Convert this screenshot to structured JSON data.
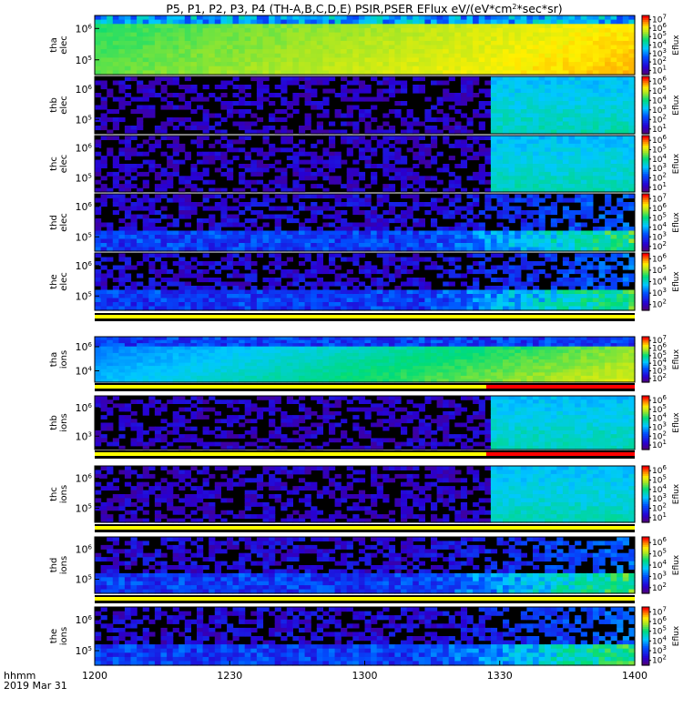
{
  "title": "P5, P1, P2, P3, P4 (TH-A,B,C,D,E) PSIR,PSER EFlux eV/(eV*cm^2*sec*sr)",
  "title_parts": {
    "pre": "P5, P1, P2, P3, P4 (TH-A,B,C,D,E) PSIR,PSER EFlux eV/(eV*cm",
    "sup": "2",
    "post": "*sec*sr)"
  },
  "time_axis": {
    "label_line1": "hhmm",
    "label_line2": "2019 Mar 31",
    "ticks": [
      "1200",
      "1230",
      "1300",
      "1330",
      "1400"
    ],
    "range": [
      "1200",
      "1400"
    ]
  },
  "colorbar_label": "Eflux",
  "colors": {
    "background": "#000000",
    "flag_yellow": "#ffff00",
    "flag_red": "#ff0000"
  },
  "chart_data": [
    {
      "type": "heatmap",
      "probe": "tha",
      "species": "elec",
      "label": [
        "tha",
        "elec"
      ],
      "y_ticks": [
        "10^6",
        "10^5"
      ],
      "colorbar_ticks": [
        "10^1",
        "10^2",
        "10^3",
        "10^4",
        "10^5",
        "10^6",
        "10^7"
      ],
      "gap_end": 0,
      "red_block": false,
      "saturated": true,
      "flag_below": "yellow_only"
    },
    {
      "type": "heatmap",
      "probe": "thb",
      "species": "elec",
      "label": [
        "thb",
        "elec"
      ],
      "y_ticks": [
        "10^6",
        "10^5"
      ],
      "colorbar_ticks": [
        "10^1",
        "10^2",
        "10^3",
        "10^4",
        "10^5",
        "10^6"
      ],
      "gap_end": 1287,
      "red_block": true,
      "saturated": false,
      "flag_below": "none"
    },
    {
      "type": "heatmap",
      "probe": "thc",
      "species": "elec",
      "label": [
        "thc",
        "elec"
      ],
      "y_ticks": [
        "10^6",
        "10^5"
      ],
      "colorbar_ticks": [
        "10^1",
        "10^2",
        "10^3",
        "10^4",
        "10^5",
        "10^6"
      ],
      "gap_end": 1287,
      "red_block": true,
      "saturated": false,
      "flag_below": "none"
    },
    {
      "type": "heatmap",
      "probe": "thd",
      "species": "elec",
      "label": [
        "thd",
        "elec"
      ],
      "y_ticks": [
        "10^6",
        "10^5"
      ],
      "colorbar_ticks": [
        "10^2",
        "10^3",
        "10^4",
        "10^5",
        "10^6",
        "10^7"
      ],
      "gap_end": 0,
      "red_block": false,
      "saturated": false,
      "flag_below": "none"
    },
    {
      "type": "heatmap",
      "probe": "the",
      "species": "elec",
      "label": [
        "the",
        "elec"
      ],
      "y_ticks": [
        "10^6",
        "10^5"
      ],
      "colorbar_ticks": [
        "10^2",
        "10^3",
        "10^4",
        "10^5",
        "10^6"
      ],
      "gap_end": 0,
      "red_block": false,
      "saturated": false,
      "flag_below": "yellow_only"
    },
    {
      "type": "heatmap",
      "probe": "tha",
      "species": "ions",
      "label": [
        "tha",
        "ions"
      ],
      "y_ticks": [
        "10^6",
        "10^4"
      ],
      "colorbar_ticks": [
        "10^2",
        "10^3",
        "10^4",
        "10^5",
        "10^6",
        "10^7"
      ],
      "gap_end": 0,
      "red_block": false,
      "saturated": false,
      "flag_below": "yellow_red"
    },
    {
      "type": "heatmap",
      "probe": "thb",
      "species": "ions",
      "label": [
        "thb",
        "ions"
      ],
      "y_ticks": [
        "10^6",
        "10^3"
      ],
      "colorbar_ticks": [
        "10^1",
        "10^2",
        "10^3",
        "10^4",
        "10^5",
        "10^6"
      ],
      "gap_end": 1287,
      "red_block": true,
      "saturated": false,
      "flag_below": "yellow_red"
    },
    {
      "type": "heatmap",
      "probe": "thc",
      "species": "ions",
      "label": [
        "thc",
        "ions"
      ],
      "y_ticks": [
        "10^6",
        "10^5"
      ],
      "colorbar_ticks": [
        "10^1",
        "10^2",
        "10^3",
        "10^4",
        "10^5",
        "10^6"
      ],
      "gap_end": 1287,
      "red_block": true,
      "saturated": false,
      "flag_below": "yellow_only"
    },
    {
      "type": "heatmap",
      "probe": "thd",
      "species": "ions",
      "label": [
        "thd",
        "ions"
      ],
      "y_ticks": [
        "10^6",
        "10^5"
      ],
      "colorbar_ticks": [
        "10^2",
        "10^3",
        "10^4",
        "10^5",
        "10^6"
      ],
      "gap_end": 0,
      "red_block": false,
      "saturated": false,
      "flag_below": "yellow_only"
    },
    {
      "type": "heatmap",
      "probe": "the",
      "species": "ions",
      "label": [
        "the",
        "ions"
      ],
      "y_ticks": [
        "10^6",
        "10^5"
      ],
      "colorbar_ticks": [
        "10^2",
        "10^3",
        "10^4",
        "10^5",
        "10^6",
        "10^7"
      ],
      "gap_end": 0,
      "red_block": false,
      "saturated": false,
      "flag_below": "none"
    }
  ]
}
